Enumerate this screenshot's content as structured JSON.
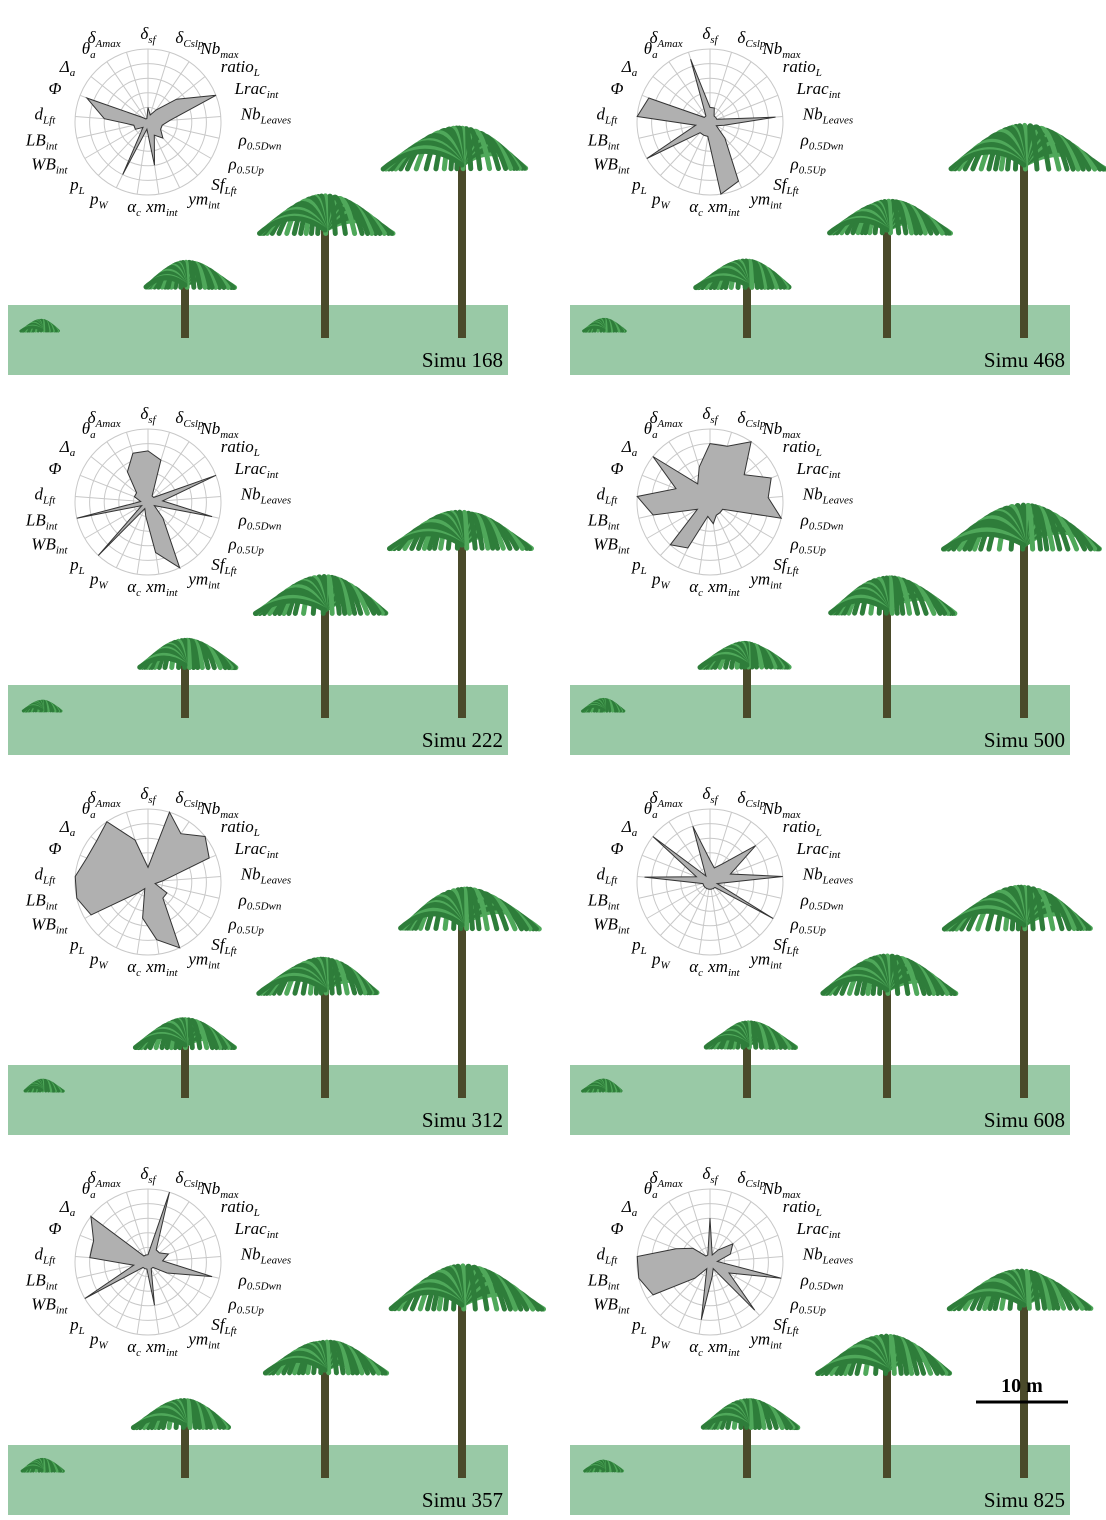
{
  "chart_data": [
    {
      "type": "radar",
      "title": "Simu 168",
      "categories": [
        [
          "δ",
          "sf"
        ],
        [
          "δ",
          "Cslp"
        ],
        [
          "Nb",
          "max"
        ],
        [
          "ratio",
          "L"
        ],
        [
          "Lrac",
          "int"
        ],
        [
          "Nb",
          "Leaves"
        ],
        [
          "ρ",
          "0.5Dwn"
        ],
        [
          "ρ",
          "0.5Up"
        ],
        [
          "Sf",
          "Lft"
        ],
        [
          "ym",
          "int"
        ],
        [
          "xm",
          "int"
        ],
        [
          "α",
          "c"
        ],
        [
          "p",
          "W"
        ],
        [
          "p",
          "L"
        ],
        [
          "WB",
          "int"
        ],
        [
          "LB",
          "int"
        ],
        [
          "d",
          "Lft"
        ],
        [
          "Φ"
        ],
        [
          "Δ",
          "a"
        ],
        [
          "θ",
          "a"
        ],
        [
          "δ",
          "Amax"
        ]
      ],
      "values": [
        0.2,
        0.1,
        0.2,
        0.5,
        1.0,
        0.3,
        0.2,
        0.2,
        0.3,
        0.2,
        0.6,
        0.1,
        0.8,
        0.1,
        0.2,
        0.2,
        0.6,
        0.9,
        0.1,
        0.05,
        0.05
      ],
      "ylim": [
        0,
        1
      ],
      "yticks": [
        0.2,
        0.4,
        0.6,
        0.8,
        1
      ],
      "color": "#b0b0b0"
    },
    {
      "type": "radar",
      "title": "Simu 468",
      "categories": [
        [
          "δ",
          "sf"
        ],
        [
          "δ",
          "Cslp"
        ],
        [
          "Nb",
          "max"
        ],
        [
          "ratio",
          "L"
        ],
        [
          "Lrac",
          "int"
        ],
        [
          "Nb",
          "Leaves"
        ],
        [
          "ρ",
          "0.5Dwn"
        ],
        [
          "ρ",
          "0.5Up"
        ],
        [
          "Sf",
          "Lft"
        ],
        [
          "ym",
          "int"
        ],
        [
          "xm",
          "int"
        ],
        [
          "α",
          "c"
        ],
        [
          "p",
          "W"
        ],
        [
          "p",
          "L"
        ],
        [
          "WB",
          "int"
        ],
        [
          "LB",
          "int"
        ],
        [
          "d",
          "Lft"
        ],
        [
          "Φ"
        ],
        [
          "Δ",
          "a"
        ],
        [
          "θ",
          "a"
        ],
        [
          "δ",
          "Amax"
        ]
      ],
      "values": [
        0.2,
        0.2,
        0.1,
        0.1,
        0.1,
        0.9,
        0.2,
        0.1,
        0.3,
        0.9,
        1.0,
        0.2,
        0.2,
        0.2,
        1.0,
        0.2,
        1.0,
        0.9,
        0.1,
        0.1,
        0.9
      ],
      "ylim": [
        0,
        1
      ],
      "yticks": [
        0.2,
        0.4,
        0.6,
        0.8,
        1
      ],
      "color": "#b0b0b0"
    },
    {
      "type": "radar",
      "title": "Simu 222",
      "categories": [
        [
          "δ",
          "sf"
        ],
        [
          "δ",
          "Cslp"
        ],
        [
          "Nb",
          "max"
        ],
        [
          "ratio",
          "L"
        ],
        [
          "Lrac",
          "int"
        ],
        [
          "Nb",
          "Leaves"
        ],
        [
          "ρ",
          "0.5Dwn"
        ],
        [
          "ρ",
          "0.5Up"
        ],
        [
          "Sf",
          "Lft"
        ],
        [
          "ym",
          "int"
        ],
        [
          "xm",
          "int"
        ],
        [
          "α",
          "c"
        ],
        [
          "p",
          "W"
        ],
        [
          "p",
          "L"
        ],
        [
          "WB",
          "int"
        ],
        [
          "LB",
          "int"
        ],
        [
          "d",
          "Lft"
        ],
        [
          "Φ"
        ],
        [
          "Δ",
          "a"
        ],
        [
          "θ",
          "a"
        ],
        [
          "δ",
          "Amax"
        ]
      ],
      "values": [
        0.7,
        0.6,
        0.1,
        0.1,
        1.0,
        0.2,
        0.9,
        0.1,
        0.3,
        1.0,
        0.7,
        0.2,
        0.1,
        1.0,
        0.1,
        1.0,
        0.1,
        0.2,
        0.2,
        0.5,
        0.7
      ],
      "ylim": [
        0,
        1
      ],
      "yticks": [
        0.2,
        0.4,
        0.6,
        0.8,
        1
      ],
      "color": "#b0b0b0"
    },
    {
      "type": "radar",
      "title": "Simu 500",
      "categories": [
        [
          "δ",
          "sf"
        ],
        [
          "δ",
          "Cslp"
        ],
        [
          "Nb",
          "max"
        ],
        [
          "ratio",
          "L"
        ],
        [
          "Lrac",
          "int"
        ],
        [
          "Nb",
          "Leaves"
        ],
        [
          "ρ",
          "0.5Dwn"
        ],
        [
          "ρ",
          "0.5Up"
        ],
        [
          "Sf",
          "Lft"
        ],
        [
          "ym",
          "int"
        ],
        [
          "xm",
          "int"
        ],
        [
          "α",
          "c"
        ],
        [
          "p",
          "W"
        ],
        [
          "p",
          "L"
        ],
        [
          "WB",
          "int"
        ],
        [
          "LB",
          "int"
        ],
        [
          "d",
          "Lft"
        ],
        [
          "Φ"
        ],
        [
          "Δ",
          "a"
        ],
        [
          "θ",
          "a"
        ],
        [
          "δ",
          "Amax"
        ]
      ],
      "values": [
        0.8,
        0.8,
        1.0,
        0.6,
        0.9,
        0.8,
        1.0,
        0.2,
        0.2,
        0.2,
        0.3,
        0.2,
        0.7,
        0.8,
        0.2,
        0.8,
        1.0,
        0.5,
        1.0,
        0.3,
        0.5
      ],
      "ylim": [
        0,
        1
      ],
      "yticks": [
        0.2,
        0.4,
        0.6,
        0.8,
        1
      ],
      "color": "#b0b0b0"
    },
    {
      "type": "radar",
      "title": "Simu 312",
      "categories": [
        [
          "δ",
          "sf"
        ],
        [
          "δ",
          "Cslp"
        ],
        [
          "Nb",
          "max"
        ],
        [
          "ratio",
          "L"
        ],
        [
          "Lrac",
          "int"
        ],
        [
          "Nb",
          "Leaves"
        ],
        [
          "ρ",
          "0.5Dwn"
        ],
        [
          "ρ",
          "0.5Up"
        ],
        [
          "Sf",
          "Lft"
        ],
        [
          "ym",
          "int"
        ],
        [
          "xm",
          "int"
        ],
        [
          "α",
          "c"
        ],
        [
          "p",
          "W"
        ],
        [
          "p",
          "L"
        ],
        [
          "WB",
          "int"
        ],
        [
          "LB",
          "int"
        ],
        [
          "d",
          "Lft"
        ],
        [
          "Φ"
        ],
        [
          "Δ",
          "a"
        ],
        [
          "θ",
          "a"
        ],
        [
          "δ",
          "Amax"
        ]
      ],
      "values": [
        0.2,
        1.0,
        0.8,
        1.0,
        0.9,
        0.2,
        0.1,
        0.3,
        0.3,
        1.0,
        0.8,
        0.5,
        0.1,
        0.2,
        0.9,
        1.0,
        1.0,
        0.9,
        0.9,
        1.0,
        0.6
      ],
      "ylim": [
        0,
        1
      ],
      "yticks": [
        0.2,
        0.4,
        0.6,
        0.8,
        1
      ],
      "color": "#b0b0b0"
    },
    {
      "type": "radar",
      "title": "Simu 608",
      "categories": [
        [
          "δ",
          "sf"
        ],
        [
          "δ",
          "Cslp"
        ],
        [
          "Nb",
          "max"
        ],
        [
          "ratio",
          "L"
        ],
        [
          "Lrac",
          "int"
        ],
        [
          "Nb",
          "Leaves"
        ],
        [
          "ρ",
          "0.5Dwn"
        ],
        [
          "ρ",
          "0.5Up"
        ],
        [
          "Sf",
          "Lft"
        ],
        [
          "ym",
          "int"
        ],
        [
          "xm",
          "int"
        ],
        [
          "α",
          "c"
        ],
        [
          "p",
          "W"
        ],
        [
          "p",
          "L"
        ],
        [
          "WB",
          "int"
        ],
        [
          "LB",
          "int"
        ],
        [
          "d",
          "Lft"
        ],
        [
          "Φ"
        ],
        [
          "Δ",
          "a"
        ],
        [
          "θ",
          "a"
        ],
        [
          "δ",
          "Amax"
        ]
      ],
      "values": [
        0.3,
        0.2,
        0.3,
        0.8,
        0.3,
        1.0,
        0.1,
        1.0,
        0.1,
        0.1,
        0.1,
        0.1,
        0.1,
        0.1,
        0.1,
        0.1,
        0.9,
        0.2,
        1.0,
        0.1,
        0.8
      ],
      "ylim": [
        0,
        1
      ],
      "yticks": [
        0.2,
        0.4,
        0.6,
        0.8,
        1
      ],
      "color": "#b0b0b0"
    },
    {
      "type": "radar",
      "title": "Simu 357",
      "categories": [
        [
          "δ",
          "sf"
        ],
        [
          "δ",
          "Cslp"
        ],
        [
          "Nb",
          "max"
        ],
        [
          "ratio",
          "L"
        ],
        [
          "Lrac",
          "int"
        ],
        [
          "Nb",
          "Leaves"
        ],
        [
          "ρ",
          "0.5Dwn"
        ],
        [
          "ρ",
          "0.5Up"
        ],
        [
          "Sf",
          "Lft"
        ],
        [
          "ym",
          "int"
        ],
        [
          "xm",
          "int"
        ],
        [
          "α",
          "c"
        ],
        [
          "p",
          "W"
        ],
        [
          "p",
          "L"
        ],
        [
          "WB",
          "int"
        ],
        [
          "LB",
          "int"
        ],
        [
          "d",
          "Lft"
        ],
        [
          "Φ"
        ],
        [
          "Δ",
          "a"
        ],
        [
          "θ",
          "a"
        ],
        [
          "δ",
          "Amax"
        ]
      ],
      "values": [
        0.1,
        1.0,
        0.2,
        0.2,
        0.3,
        0.2,
        0.9,
        0.3,
        0.1,
        0.1,
        0.6,
        0.1,
        0.1,
        0.1,
        1.0,
        0.2,
        0.8,
        0.8,
        1.0,
        0.1,
        0.1
      ],
      "ylim": [
        0,
        1
      ],
      "yticks": [
        0.2,
        0.4,
        0.6,
        0.8,
        1
      ],
      "color": "#b0b0b0"
    },
    {
      "type": "radar",
      "title": "Simu 825",
      "categories": [
        [
          "δ",
          "sf"
        ],
        [
          "δ",
          "Cslp"
        ],
        [
          "Nb",
          "max"
        ],
        [
          "ratio",
          "L"
        ],
        [
          "Lrac",
          "int"
        ],
        [
          "Nb",
          "Leaves"
        ],
        [
          "ρ",
          "0.5Dwn"
        ],
        [
          "ρ",
          "0.5Up"
        ],
        [
          "Sf",
          "Lft"
        ],
        [
          "ym",
          "int"
        ],
        [
          "xm",
          "int"
        ],
        [
          "α",
          "c"
        ],
        [
          "p",
          "W"
        ],
        [
          "p",
          "L"
        ],
        [
          "WB",
          "int"
        ],
        [
          "LB",
          "int"
        ],
        [
          "d",
          "Lft"
        ],
        [
          "Φ"
        ],
        [
          "Δ",
          "a"
        ],
        [
          "θ",
          "a"
        ],
        [
          "δ",
          "Amax"
        ]
      ],
      "values": [
        0.6,
        0.1,
        0.2,
        0.4,
        0.3,
        0.1,
        1.0,
        0.3,
        0.9,
        0.1,
        0.2,
        0.8,
        0.1,
        0.3,
        0.9,
        1.0,
        1.0,
        0.5,
        0.3,
        0.1,
        0.1
      ],
      "ylim": [
        0,
        1
      ],
      "yticks": [
        0.2,
        0.4,
        0.6,
        0.8,
        1
      ],
      "color": "#b0b0b0"
    }
  ],
  "scale_bar": {
    "label": "10 m"
  }
}
